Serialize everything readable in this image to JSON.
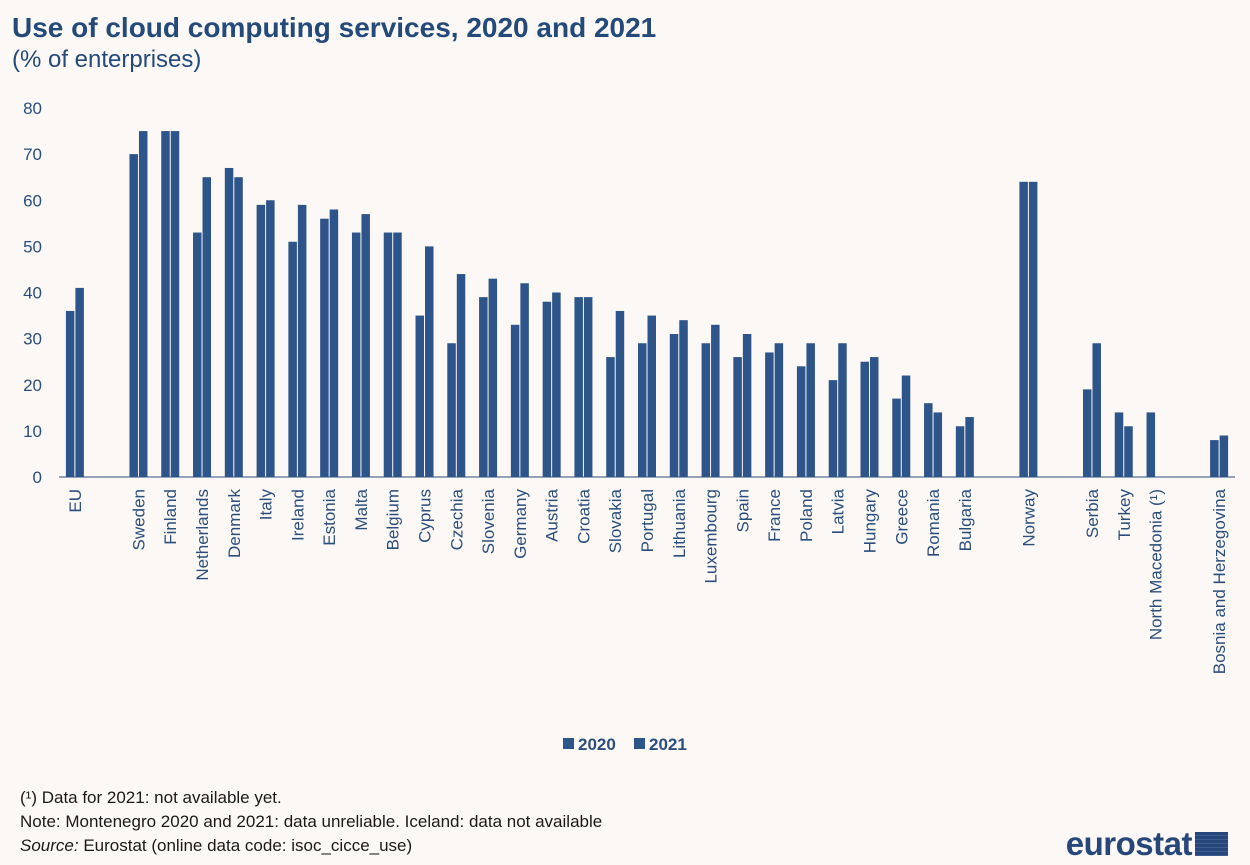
{
  "title": "Use of cloud computing services, 2020 and 2021",
  "subtitle": "(% of enterprises)",
  "chart_data": {
    "type": "bar",
    "ylim": [
      0,
      80
    ],
    "yticks": [
      0,
      10,
      20,
      30,
      40,
      50,
      60,
      70,
      80
    ],
    "grid": false,
    "legend_position": "bottom",
    "bar_color": "#2e5589",
    "categories": [
      "EU",
      "Sweden",
      "Finland",
      "Netherlands",
      "Denmark",
      "Italy",
      "Ireland",
      "Estonia",
      "Malta",
      "Belgium",
      "Cyprus",
      "Czechia",
      "Slovenia",
      "Germany",
      "Austria",
      "Croatia",
      "Slovakia",
      "Portugal",
      "Lithuania",
      "Luxembourg",
      "Spain",
      "France",
      "Poland",
      "Latvia",
      "Hungary",
      "Greece",
      "Romania",
      "Bulgaria",
      "Norway",
      "Serbia",
      "Turkey",
      "North Macedonia (¹)",
      "Bosnia and Herzegovina"
    ],
    "series": [
      {
        "name": "2020",
        "values": [
          36,
          70,
          75,
          53,
          67,
          59,
          51,
          56,
          53,
          53,
          35,
          29,
          39,
          33,
          38,
          39,
          26,
          29,
          31,
          29,
          26,
          27,
          24,
          21,
          25,
          17,
          16,
          11,
          64,
          19,
          14,
          14,
          8
        ]
      },
      {
        "name": "2021",
        "values": [
          41,
          75,
          75,
          65,
          65,
          60,
          59,
          58,
          57,
          53,
          50,
          44,
          43,
          42,
          40,
          39,
          36,
          35,
          34,
          33,
          31,
          29,
          29,
          29,
          26,
          22,
          14,
          13,
          64,
          29,
          11,
          null,
          9
        ]
      }
    ]
  },
  "notes": {
    "footnote": "(¹) Data for 2021: not available  yet.",
    "note": "Note: Montenegro  2020 and 2021: data unreliable.  Iceland: data not available",
    "source_label": "Source:",
    "source_text": " Eurostat (online data code: isoc_cicce_use)"
  },
  "logo": {
    "text": "eurostat"
  }
}
